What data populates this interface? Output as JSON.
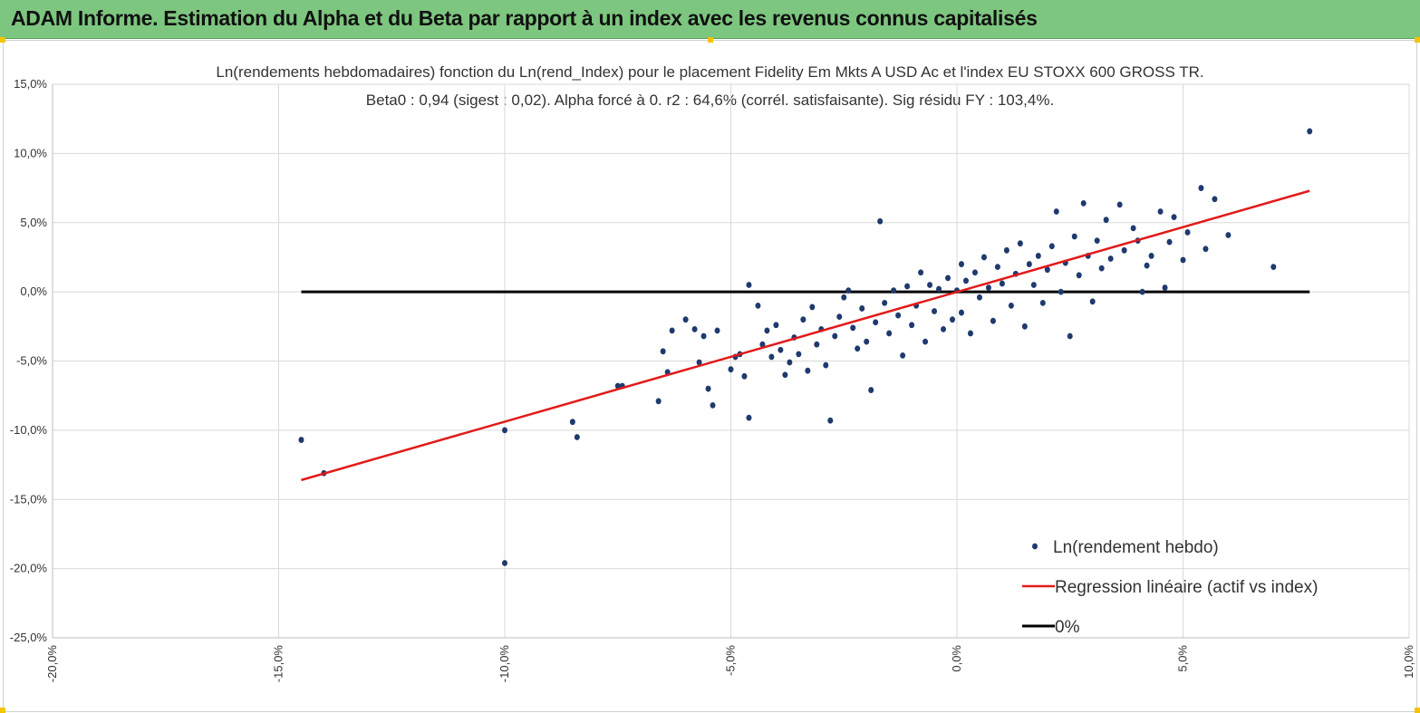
{
  "banner": {
    "title": "ADAM Informe. Estimation du Alpha et du Beta par rapport à un index avec les revenus connus capitalisés"
  },
  "colors": {
    "banner": "#7dc67f",
    "points": "#1f3a6e",
    "regression": "#e21a1a",
    "zero_line": "#000000",
    "grid": "#d9d9d9"
  },
  "chart_data": {
    "type": "scatter",
    "title": "Ln(rendements hebdomadaires) fonction du Ln(rend_Index) pour le placement Fidelity Em Mkts A USD Ac et l'index EU STOXX 600 GROSS TR.",
    "subtitle": "Beta0 : 0,94  (sigest : 0,02).  Alpha forcé à 0. r2 : 64,6% (corrél. satisfaisante). Sig résidu FY : 103,4%.",
    "xlabel": "",
    "ylabel": "",
    "xlim": [
      -0.2,
      0.1
    ],
    "ylim": [
      -0.25,
      0.15
    ],
    "x_ticks": [
      -0.2,
      -0.15,
      -0.1,
      -0.05,
      0.0,
      0.05,
      0.1
    ],
    "x_tick_labels": [
      "-20,0%",
      "-15,0%",
      "-10,0%",
      "-5,0%",
      "0,0%",
      "5,0%",
      "10,0%"
    ],
    "y_ticks": [
      0.15,
      0.1,
      0.05,
      0.0,
      -0.05,
      -0.1,
      -0.15,
      -0.2,
      -0.25
    ],
    "y_tick_labels": [
      "15,0%",
      "10,0%",
      "5,0%",
      "0,0%",
      "-5,0%",
      "-10,0%",
      "-15,0%",
      "-20,0%",
      "-25,0%"
    ],
    "grid": true,
    "legend_position": "bottom-right",
    "series": [
      {
        "name": "Ln(rendement hebdo)",
        "kind": "scatter",
        "note_points": "outliers read from chart; the dense cluster around the origin is listed as representative points",
        "points": [
          [
            -0.145,
            -0.107
          ],
          [
            -0.14,
            -0.131
          ],
          [
            -0.1,
            -0.1
          ],
          [
            -0.1,
            -0.196
          ],
          [
            -0.085,
            -0.094
          ],
          [
            -0.084,
            -0.105
          ],
          [
            -0.075,
            -0.068
          ],
          [
            -0.074,
            -0.068
          ],
          [
            -0.066,
            -0.079
          ],
          [
            -0.065,
            -0.043
          ],
          [
            -0.064,
            -0.058
          ],
          [
            -0.063,
            -0.028
          ],
          [
            -0.06,
            -0.02
          ],
          [
            -0.058,
            -0.027
          ],
          [
            -0.057,
            -0.051
          ],
          [
            -0.056,
            -0.032
          ],
          [
            -0.055,
            -0.07
          ],
          [
            -0.054,
            -0.082
          ],
          [
            -0.053,
            -0.028
          ],
          [
            -0.05,
            -0.056
          ],
          [
            -0.049,
            -0.047
          ],
          [
            -0.048,
            -0.045
          ],
          [
            -0.047,
            -0.061
          ],
          [
            -0.046,
            -0.091
          ],
          [
            -0.046,
            0.005
          ],
          [
            -0.044,
            -0.01
          ],
          [
            -0.043,
            -0.038
          ],
          [
            -0.042,
            -0.028
          ],
          [
            -0.041,
            -0.047
          ],
          [
            -0.04,
            -0.024
          ],
          [
            -0.039,
            -0.042
          ],
          [
            -0.038,
            -0.06
          ],
          [
            -0.037,
            -0.051
          ],
          [
            -0.036,
            -0.033
          ],
          [
            -0.035,
            -0.045
          ],
          [
            -0.034,
            -0.02
          ],
          [
            -0.033,
            -0.057
          ],
          [
            -0.032,
            -0.011
          ],
          [
            -0.031,
            -0.038
          ],
          [
            -0.03,
            -0.027
          ],
          [
            -0.029,
            -0.053
          ],
          [
            -0.028,
            -0.093
          ],
          [
            -0.027,
            -0.032
          ],
          [
            -0.026,
            -0.018
          ],
          [
            -0.025,
            -0.004
          ],
          [
            -0.024,
            0.001
          ],
          [
            -0.023,
            -0.026
          ],
          [
            -0.022,
            -0.041
          ],
          [
            -0.021,
            -0.012
          ],
          [
            -0.02,
            -0.036
          ],
          [
            -0.019,
            -0.071
          ],
          [
            -0.018,
            -0.022
          ],
          [
            -0.017,
            0.051
          ],
          [
            -0.016,
            -0.008
          ],
          [
            -0.015,
            -0.03
          ],
          [
            -0.014,
            0.001
          ],
          [
            -0.013,
            -0.017
          ],
          [
            -0.012,
            -0.046
          ],
          [
            -0.011,
            0.004
          ],
          [
            -0.01,
            -0.024
          ],
          [
            -0.009,
            -0.01
          ],
          [
            -0.008,
            0.014
          ],
          [
            -0.007,
            -0.036
          ],
          [
            -0.006,
            0.005
          ],
          [
            -0.005,
            -0.014
          ],
          [
            -0.004,
            0.002
          ],
          [
            -0.003,
            -0.027
          ],
          [
            -0.002,
            0.01
          ],
          [
            -0.001,
            -0.02
          ],
          [
            0.0,
            0.001
          ],
          [
            0.001,
            0.02
          ],
          [
            0.001,
            -0.015
          ],
          [
            0.002,
            0.008
          ],
          [
            0.003,
            -0.03
          ],
          [
            0.004,
            0.014
          ],
          [
            0.005,
            -0.004
          ],
          [
            0.006,
            0.025
          ],
          [
            0.007,
            0.003
          ],
          [
            0.008,
            -0.021
          ],
          [
            0.009,
            0.018
          ],
          [
            0.01,
            0.006
          ],
          [
            0.011,
            0.03
          ],
          [
            0.012,
            -0.01
          ],
          [
            0.013,
            0.013
          ],
          [
            0.014,
            0.035
          ],
          [
            0.015,
            -0.025
          ],
          [
            0.016,
            0.02
          ],
          [
            0.017,
            0.005
          ],
          [
            0.018,
            0.026
          ],
          [
            0.019,
            -0.008
          ],
          [
            0.02,
            0.016
          ],
          [
            0.021,
            0.033
          ],
          [
            0.022,
            0.058
          ],
          [
            0.023,
            0.0
          ],
          [
            0.024,
            0.021
          ],
          [
            0.025,
            -0.032
          ],
          [
            0.026,
            0.04
          ],
          [
            0.027,
            0.012
          ],
          [
            0.028,
            0.064
          ],
          [
            0.029,
            0.026
          ],
          [
            0.03,
            -0.007
          ],
          [
            0.031,
            0.037
          ],
          [
            0.032,
            0.017
          ],
          [
            0.033,
            0.052
          ],
          [
            0.034,
            0.024
          ],
          [
            0.036,
            0.063
          ],
          [
            0.037,
            0.03
          ],
          [
            0.039,
            0.046
          ],
          [
            0.04,
            0.037
          ],
          [
            0.041,
            0.0
          ],
          [
            0.042,
            0.019
          ],
          [
            0.043,
            0.026
          ],
          [
            0.045,
            0.058
          ],
          [
            0.046,
            0.003
          ],
          [
            0.047,
            0.036
          ],
          [
            0.048,
            0.054
          ],
          [
            0.05,
            0.023
          ],
          [
            0.051,
            0.043
          ],
          [
            0.054,
            0.075
          ],
          [
            0.055,
            0.031
          ],
          [
            0.057,
            0.067
          ],
          [
            0.06,
            0.041
          ],
          [
            0.07,
            0.018
          ],
          [
            0.078,
            0.116
          ]
        ]
      },
      {
        "name": "Regression linéaire (actif vs index)",
        "kind": "line",
        "x": [
          -0.145,
          0.078
        ],
        "y": [
          -0.136,
          0.073
        ]
      },
      {
        "name": "0%",
        "kind": "line",
        "x": [
          -0.145,
          0.078
        ],
        "y": [
          0.0,
          0.0
        ]
      }
    ]
  }
}
